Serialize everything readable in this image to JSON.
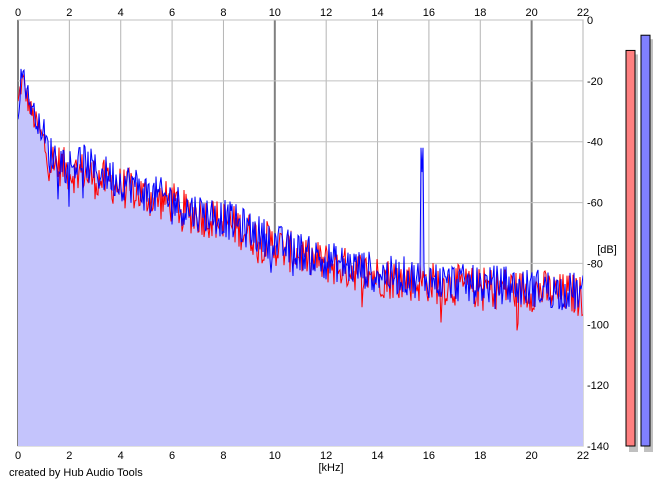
{
  "chart_data": {
    "type": "line",
    "title": "",
    "xlabel": "[kHz]",
    "ylabel": "[dB]",
    "xlim": [
      0,
      22
    ],
    "ylim": [
      -140,
      0
    ],
    "x_ticks": [
      "0",
      "2",
      "4",
      "6",
      "8",
      "10",
      "12",
      "14",
      "16",
      "18",
      "20",
      "22"
    ],
    "y_ticks": [
      "0",
      "-20",
      "-40",
      "-60",
      "-80",
      "-100",
      "-120",
      "-140"
    ],
    "grid": true,
    "series": [
      {
        "color": "#ff0000",
        "x": [
          0,
          0.1,
          0.2,
          0.3,
          0.5,
          0.8,
          1.0,
          1.2,
          1.5,
          2.0,
          2.5,
          3.0,
          3.5,
          4.0,
          4.5,
          5.0,
          5.5,
          6.0,
          6.5,
          7.0,
          7.5,
          8.0,
          8.5,
          9.0,
          9.5,
          10.0,
          10.5,
          11.0,
          11.5,
          12.0,
          12.5,
          13.0,
          13.5,
          14.0,
          14.5,
          15.0,
          15.5,
          16.0,
          16.5,
          17.0,
          17.5,
          18.0,
          18.5,
          19.0,
          19.5,
          20.0,
          20.5,
          21.0,
          21.5,
          22.0
        ],
        "y": [
          -28,
          -22,
          -20,
          -24,
          -30,
          -36,
          -40,
          -46,
          -47,
          -50,
          -50,
          -52,
          -53,
          -55,
          -56,
          -58,
          -59,
          -60,
          -63,
          -64,
          -65,
          -66,
          -68,
          -70,
          -72,
          -74,
          -76,
          -77,
          -79,
          -80,
          -81,
          -82,
          -83,
          -84,
          -85,
          -85,
          -86,
          -86,
          -87,
          -87,
          -88,
          -88,
          -88,
          -88,
          -89,
          -89,
          -89,
          -90,
          -90,
          -91
        ]
      },
      {
        "color": "#0000ff",
        "x": [
          0,
          0.1,
          0.2,
          0.3,
          0.5,
          0.8,
          1.0,
          1.2,
          1.5,
          2.0,
          2.5,
          3.0,
          3.5,
          4.0,
          4.5,
          5.0,
          5.5,
          6.0,
          6.5,
          7.0,
          7.5,
          8.0,
          8.5,
          9.0,
          9.5,
          10.0,
          10.5,
          11.0,
          11.5,
          12.0,
          12.5,
          13.0,
          13.5,
          14.0,
          14.5,
          15.0,
          15.5,
          16.0,
          16.5,
          17.0,
          17.5,
          18.0,
          18.5,
          19.0,
          19.5,
          20.0,
          20.5,
          21.0,
          21.5,
          22.0
        ],
        "y": [
          -32,
          -20,
          -16,
          -22,
          -28,
          -34,
          -38,
          -44,
          -45,
          -48,
          -46,
          -50,
          -51,
          -53,
          -54,
          -57,
          -58,
          -59,
          -62,
          -63,
          -64,
          -65,
          -67,
          -69,
          -71,
          -73,
          -75,
          -76,
          -78,
          -79,
          -80,
          -81,
          -82,
          -83,
          -84,
          -84,
          -85,
          -85,
          -86,
          -86,
          -87,
          -87,
          -87,
          -87,
          -88,
          -88,
          -88,
          -89,
          -89,
          -90
        ]
      }
    ],
    "annotations": [
      {
        "x": 15.75,
        "y": -50
      }
    ],
    "level_meters": [
      {
        "color": "#ff8080",
        "level_db": -10
      },
      {
        "color": "#8080ff",
        "level_db": -5
      }
    ]
  },
  "footer": {
    "credit": "created by Hub Audio Tools"
  }
}
